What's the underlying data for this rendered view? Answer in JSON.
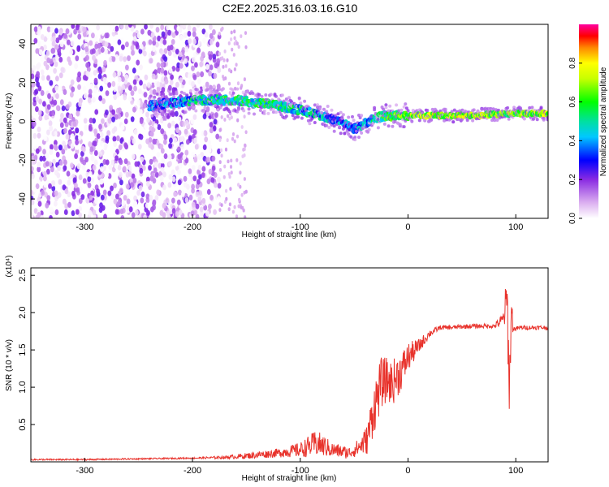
{
  "figure_title": "C2E2.2025.316.03.16.G10",
  "chart_data": [
    {
      "type": "heatmap",
      "title": "C2E2.2025.316.03.16.G10",
      "xlabel": "Height of straight line (km)",
      "ylabel": "Frequency (Hz)",
      "xlim": [
        -350,
        130
      ],
      "ylim": [
        -50,
        50
      ],
      "x_ticks": [
        -300,
        -200,
        -100,
        0,
        100
      ],
      "x_tick_labels": [
        "-300",
        "-200",
        "-100",
        "0",
        "100"
      ],
      "y_ticks": [
        -40,
        -20,
        0,
        20,
        40
      ],
      "y_tick_labels": [
        "-40",
        "-20",
        "0",
        "20",
        "40"
      ],
      "colorbar": {
        "label": "Normalized spectral amplitude",
        "range": [
          0,
          1
        ],
        "ticks": [
          0.0,
          0.2,
          0.4,
          0.6,
          0.8
        ],
        "tick_labels": [
          "0.0",
          "0.2",
          "0.4",
          "0.6",
          "0.8"
        ]
      },
      "noise_region_x": [
        -350,
        -175
      ],
      "ridge": {
        "x": [
          -240,
          -200,
          -160,
          -120,
          -100,
          -80,
          -60,
          -50,
          -40,
          -30,
          -20,
          0,
          20,
          60,
          90,
          130
        ],
        "y": [
          8,
          11,
          11,
          8,
          6,
          3,
          -1,
          -4,
          -1,
          2,
          3,
          3,
          3,
          3,
          4,
          4
        ],
        "amplitude": [
          0.3,
          0.45,
          0.5,
          0.5,
          0.45,
          0.4,
          0.35,
          0.3,
          0.4,
          0.5,
          0.55,
          0.65,
          0.7,
          0.7,
          0.6,
          0.7
        ]
      }
    },
    {
      "type": "line",
      "xlabel": "Height of straight line (km)",
      "ylabel": "SNR (10 * v/v)",
      "y_multiplier": "(x10⁴)",
      "xlim": [
        -350,
        130
      ],
      "ylim": [
        0,
        2.6
      ],
      "x_ticks": [
        -300,
        -200,
        -100,
        0,
        100
      ],
      "x_tick_labels": [
        "-300",
        "-200",
        "-100",
        "0",
        "100"
      ],
      "y_ticks": [
        0.5,
        1.0,
        1.5,
        2.0,
        2.5
      ],
      "y_tick_labels": [
        "0.5",
        "1.0",
        "1.5",
        "2.0",
        "2.5"
      ],
      "series": [
        {
          "color": "#e8322b",
          "x": [
            -350,
            -300,
            -250,
            -200,
            -170,
            -150,
            -120,
            -100,
            -85,
            -70,
            -55,
            -45,
            -38,
            -32,
            -25,
            -20,
            -15,
            -10,
            -5,
            0,
            10,
            20,
            30,
            40,
            60,
            80,
            88,
            92,
            94,
            96,
            98,
            105,
            130
          ],
          "y": [
            0.03,
            0.03,
            0.04,
            0.05,
            0.06,
            0.08,
            0.12,
            0.16,
            0.25,
            0.16,
            0.12,
            0.2,
            0.3,
            0.7,
            1.05,
            1.1,
            1.05,
            1.15,
            1.25,
            1.4,
            1.55,
            1.72,
            1.8,
            1.8,
            1.82,
            1.82,
            1.9,
            2.15,
            1.0,
            2.0,
            1.78,
            1.8,
            1.8
          ],
          "noise": [
            0.01,
            0.01,
            0.01,
            0.01,
            0.02,
            0.04,
            0.06,
            0.1,
            0.18,
            0.1,
            0.08,
            0.12,
            0.2,
            0.35,
            0.35,
            0.3,
            0.3,
            0.3,
            0.25,
            0.2,
            0.1,
            0.05,
            0.03,
            0.03,
            0.03,
            0.03,
            0.1,
            0.4,
            0.4,
            0.3,
            0.03,
            0.03,
            0.03
          ]
        }
      ]
    }
  ]
}
